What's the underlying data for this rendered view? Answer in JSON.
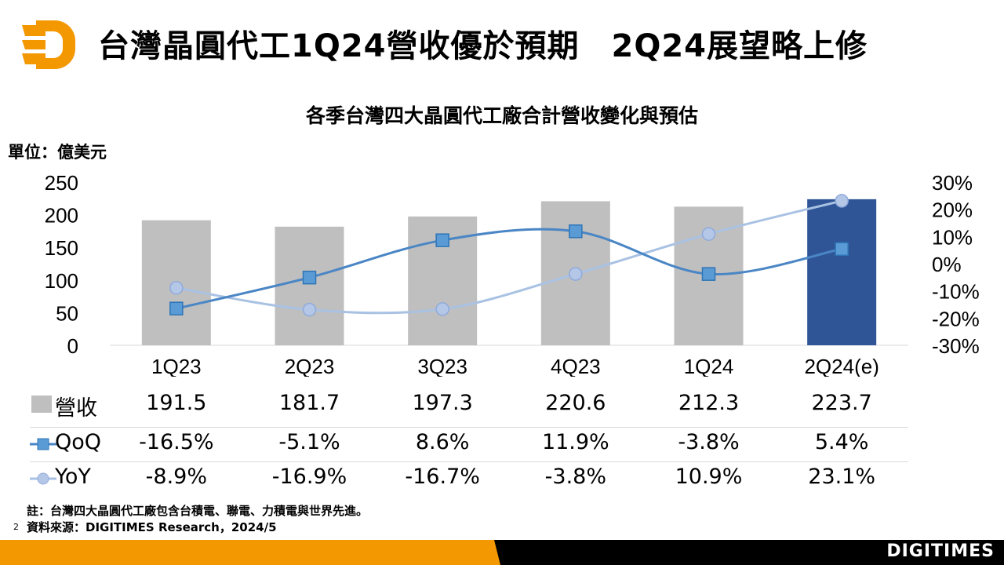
{
  "header": {
    "title": "台灣晶圓代工1Q24營收優於預期　2Q24展望略上修",
    "logo": "DIGITIMES logo"
  },
  "chart_data": {
    "type": "bar+line",
    "title": "各季台灣四大晶圓代工廠合計營收變化與預估",
    "ylabel": "單位：億美元",
    "categories": [
      "1Q23",
      "2Q23",
      "3Q23",
      "4Q23",
      "1Q24",
      "2Q24(e)"
    ],
    "ylim": [
      0,
      250
    ],
    "yticks": [
      0,
      50,
      100,
      150,
      200,
      250
    ],
    "y2lim": [
      -30,
      30
    ],
    "y2ticks": [
      "30%",
      "20%",
      "10%",
      "0%",
      "-10%",
      "-20%",
      "-30%"
    ],
    "series": [
      {
        "name": "營收",
        "type": "bar",
        "values": [
          191.5,
          181.7,
          197.3,
          220.6,
          212.3,
          223.7
        ],
        "labels": [
          "191.5",
          "181.7",
          "197.3",
          "220.6",
          "212.3",
          "223.7"
        ],
        "color": "#bfbfbf",
        "highlight_color": "#2f5597"
      },
      {
        "name": "QoQ",
        "type": "line",
        "axis": "right",
        "values": [
          -16.5,
          -5.1,
          8.6,
          11.9,
          -3.8,
          5.4
        ],
        "labels": [
          "-16.5%",
          "-5.1%",
          "8.6%",
          "11.9%",
          "-3.8%",
          "5.4%"
        ],
        "color": "#4a86c5"
      },
      {
        "name": "YoY",
        "type": "line",
        "axis": "right",
        "values": [
          -8.9,
          -16.9,
          -16.7,
          -3.8,
          10.9,
          23.1
        ],
        "labels": [
          "-8.9%",
          "-16.9%",
          "-16.7%",
          "-3.8%",
          "10.9%",
          "23.1%"
        ],
        "color": "#a9c2e3"
      }
    ]
  },
  "footer": {
    "note": "註：台灣四大晶圓代工廠包含台積電、聯電、力積電與世界先進。",
    "source": "資料來源：DIGITIMES Research，2024/5",
    "page": "2",
    "brand": "DIGITIMES"
  }
}
